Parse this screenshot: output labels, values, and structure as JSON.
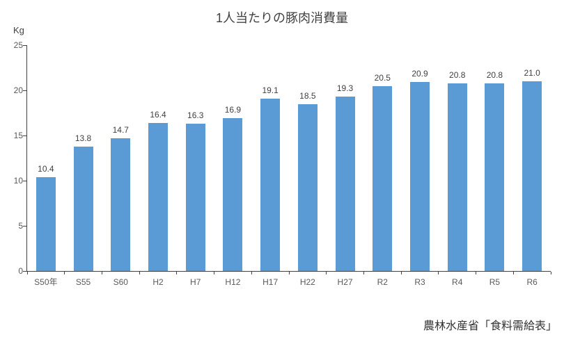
{
  "title": "1人当たりの豚肉消費量",
  "source": "農林水産省「食料需給表」",
  "colors": {
    "bar": "#5B9BD5",
    "axis": "#404040",
    "tick_label": "#595959",
    "data_label": "#404040"
  },
  "chart_data": {
    "type": "bar",
    "title": "1人当たりの豚肉消費量",
    "categories": [
      "S50年",
      "S55",
      "S60",
      "H2",
      "H7",
      "H12",
      "H17",
      "H22",
      "H27",
      "R2",
      "R3",
      "R4",
      "R5",
      "R6"
    ],
    "values": [
      10.4,
      13.8,
      14.7,
      16.4,
      16.3,
      16.9,
      19.1,
      18.5,
      19.3,
      20.5,
      20.9,
      20.8,
      20.8,
      21.0
    ],
    "xlabel": "",
    "ylabel": "Kg",
    "ylim": [
      0,
      25
    ],
    "y_ticks": [
      0,
      5,
      10,
      15,
      20,
      25
    ],
    "grid": false,
    "data_labels": true,
    "legend": "none"
  }
}
